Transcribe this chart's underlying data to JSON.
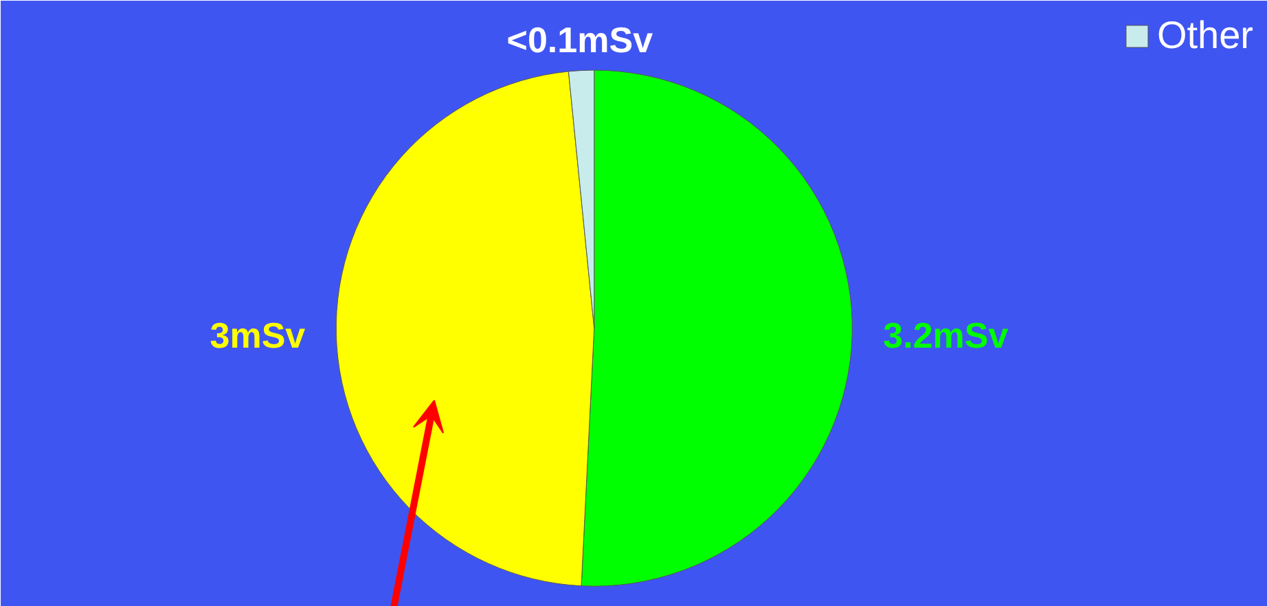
{
  "chart_data": {
    "type": "pie",
    "categories": [
      null,
      null,
      "Other"
    ],
    "values": [
      3.2,
      3,
      0.1
    ],
    "colors": [
      "#00ff00",
      "#ffff00",
      "#c8ecec"
    ],
    "value_labels": [
      "3.2mSv",
      "3mSv",
      "<0.1mSv"
    ],
    "legend": "top right"
  }
}
